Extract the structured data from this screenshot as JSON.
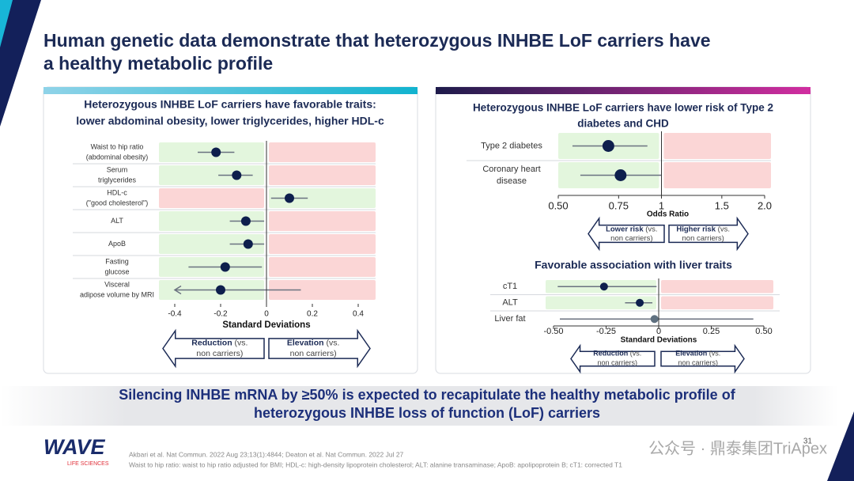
{
  "title": [
    "Human genetic data demonstrate that heterozygous INHBE LoF carriers have",
    "a healthy metabolic profile"
  ],
  "chart_data": [
    {
      "type": "forest",
      "title": [
        "Heterozygous INHBE LoF carriers have favorable traits:",
        "lower abdominal obesity, lower triglycerides, higher HDL-c"
      ],
      "categories": [
        [
          "Waist to hip ratio",
          "(abdominal obesity)"
        ],
        [
          "Serum",
          "triglycerides"
        ],
        [
          "HDL-c",
          "(\"good cholesterol\")"
        ],
        [
          "ALT"
        ],
        [
          "ApoB"
        ],
        [
          "Fasting",
          "glucose"
        ],
        [
          "Visceral",
          "adipose volume by MRI"
        ]
      ],
      "values": [
        -0.22,
        -0.13,
        0.1,
        -0.09,
        -0.08,
        -0.18,
        -0.2
      ],
      "lower": [
        -0.3,
        -0.21,
        0.02,
        -0.16,
        -0.16,
        -0.34,
        -0.4
      ],
      "upper": [
        -0.14,
        -0.06,
        0.18,
        -0.01,
        -0.01,
        -0.02,
        0.15
      ],
      "point_colors": [
        "#0e1f4d",
        "#0e1f4d",
        "#0e1f4d",
        "#0e1f4d",
        "#0e1f4d",
        "#0e1f4d",
        "#0e1f4d"
      ],
      "highlight": [
        true,
        true,
        true,
        true,
        true,
        true,
        true
      ],
      "xlim": [
        -0.4,
        0.4
      ],
      "xticks": [
        -0.4,
        -0.2,
        0,
        0.2,
        0.4
      ],
      "x_label": "Standard Deviations",
      "arrows": [
        {
          "label": "Reduction",
          "note": [
            "(vs.",
            "non carriers)"
          ]
        },
        {
          "label": "Elevation",
          "note": [
            "(vs.",
            "non carriers)"
          ]
        }
      ]
    },
    {
      "type": "forest",
      "log_scale": true,
      "title": [
        "Heterozygous INHBE LoF carriers have lower risk of Type 2",
        "diabetes and CHD"
      ],
      "categories": [
        [
          "Type 2 diabetes"
        ],
        [
          "Coronary heart",
          "disease"
        ]
      ],
      "values": [
        0.7,
        0.76
      ],
      "lower": [
        0.55,
        0.58
      ],
      "upper": [
        0.91,
        1.0
      ],
      "point_colors": [
        "#0e1f4d",
        "#0e1f4d"
      ],
      "highlight": [
        true,
        true
      ],
      "xlim": [
        0.5,
        2.0
      ],
      "xticks": [
        {
          "value": 0.5,
          "label": "0.50"
        },
        0.75,
        1,
        1.5,
        {
          "value": 2.0,
          "label": "2.0"
        }
      ],
      "x_label": "Odds Ratio",
      "arrows": [
        {
          "label": "Lower risk",
          "note": [
            "(vs.",
            "non carriers)"
          ]
        },
        {
          "label": "Higher risk",
          "note": [
            "(vs.",
            "non carriers)"
          ]
        }
      ]
    },
    {
      "type": "forest",
      "title": [
        "Favorable association with liver traits"
      ],
      "categories": [
        [
          "cT1"
        ],
        [
          "ALT"
        ],
        [
          "Liver fat"
        ]
      ],
      "values": [
        -0.26,
        -0.09,
        -0.02
      ],
      "lower": [
        -0.48,
        -0.16,
        -0.47
      ],
      "upper": [
        -0.01,
        -0.03,
        0.45
      ],
      "point_colors": [
        "#0e1f4d",
        "#0e1f4d",
        "#5f7080"
      ],
      "highlight": [
        true,
        true,
        false
      ],
      "xlim": [
        -0.5,
        0.5
      ],
      "xticks": [
        {
          "value": -0.5,
          "label": "-0.50"
        },
        -0.25,
        0,
        0.25,
        {
          "value": 0.5,
          "label": "0.50"
        }
      ],
      "x_label": "Standard Deviations",
      "arrows": [
        {
          "label": "Reduction",
          "note": [
            "(vs.",
            "non carriers)"
          ]
        },
        {
          "label": "Elevation",
          "note": [
            "(vs.",
            "non carriers)"
          ]
        }
      ]
    }
  ],
  "conclusion": [
    "Silencing INHBE mRNA by ≥50% is expected to recapitulate the healthy metabolic profile of",
    "heterozygous INHBE loss of function (LoF) carriers"
  ],
  "logo": {
    "name": "WAVE",
    "sub": "LIFE SCIENCES"
  },
  "references": [
    "Akbari et al. Nat Commun. 2022 Aug 23;13(1):4844; Deaton et al. Nat Commun. 2022 Jul 27",
    "Waist to hip ratio: waist to hip ratio adjusted for BMI; HDL-c: high-density lipoprotein cholesterol; ALT: alanine transaminase; ApoB: apolipoprotein B; cT1: corrected T1"
  ],
  "page_number": "31",
  "watermark": "公众号 · 鼎泰集团TriApex"
}
